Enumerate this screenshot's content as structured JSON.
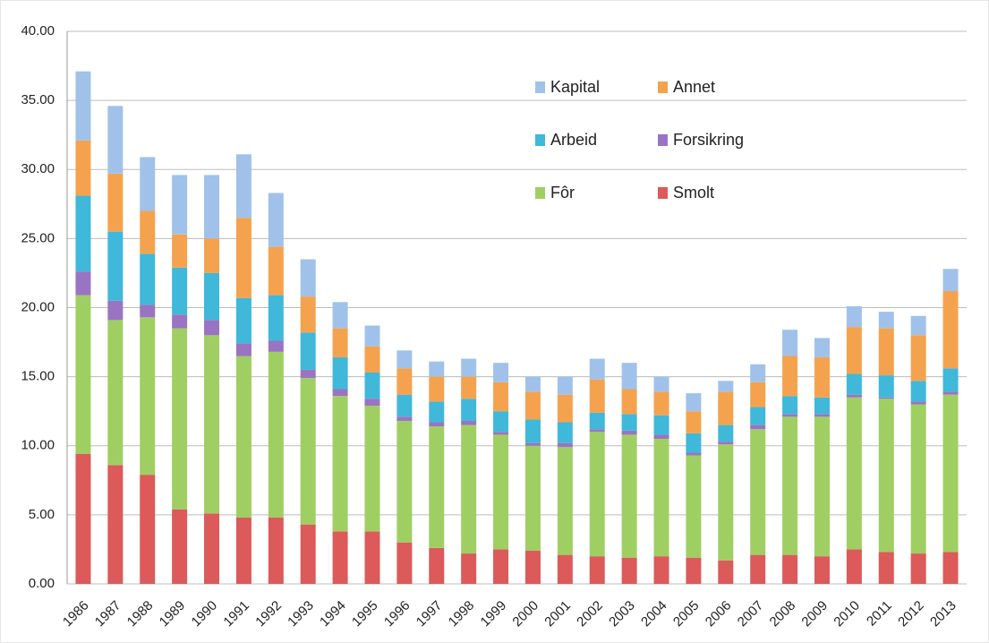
{
  "chart_data": {
    "type": "stacked_bar",
    "categories": [
      "1986",
      "1987",
      "1988",
      "1989",
      "1990",
      "1991",
      "1992",
      "1993",
      "1994",
      "1995",
      "1996",
      "1997",
      "1998",
      "1999",
      "2000",
      "2001",
      "2002",
      "2003",
      "2004",
      "2005",
      "2006",
      "2007",
      "2008",
      "2009",
      "2010",
      "2011",
      "2012",
      "2013"
    ],
    "series": [
      {
        "name": "Smolt",
        "color": "#dc5a5a",
        "values": [
          9.4,
          8.6,
          7.9,
          5.4,
          5.1,
          4.8,
          4.8,
          4.3,
          3.8,
          3.8,
          3.0,
          2.6,
          2.2,
          2.5,
          2.4,
          2.1,
          2.0,
          1.9,
          2.0,
          1.9,
          1.7,
          2.1,
          2.1,
          2.0,
          2.5,
          2.3,
          2.2,
          2.3
        ]
      },
      {
        "name": "Fôr",
        "color": "#9fcf62",
        "values": [
          11.5,
          10.5,
          11.4,
          13.1,
          12.9,
          11.7,
          12.0,
          10.6,
          9.8,
          9.1,
          8.8,
          8.8,
          9.3,
          8.3,
          7.6,
          7.8,
          9.0,
          8.9,
          8.5,
          7.4,
          8.4,
          9.1,
          10.0,
          10.1,
          11.0,
          11.1,
          10.8,
          11.4
        ]
      },
      {
        "name": "Forsikring",
        "color": "#9a74c2",
        "values": [
          1.7,
          1.4,
          0.9,
          1.0,
          1.1,
          0.9,
          0.8,
          0.6,
          0.5,
          0.5,
          0.3,
          0.3,
          0.3,
          0.2,
          0.2,
          0.3,
          0.2,
          0.3,
          0.3,
          0.2,
          0.2,
          0.3,
          0.2,
          0.2,
          0.2,
          0.1,
          0.2,
          0.2
        ]
      },
      {
        "name": "Arbeid",
        "color": "#3fb8da",
        "values": [
          5.5,
          5.0,
          3.7,
          3.4,
          3.4,
          3.3,
          3.3,
          2.7,
          2.3,
          1.9,
          1.6,
          1.5,
          1.6,
          1.5,
          1.7,
          1.5,
          1.2,
          1.2,
          1.4,
          1.4,
          1.2,
          1.3,
          1.3,
          1.2,
          1.5,
          1.6,
          1.5,
          1.7
        ]
      },
      {
        "name": "Annet",
        "color": "#f5a24e",
        "values": [
          4.0,
          4.2,
          3.1,
          2.4,
          2.5,
          5.8,
          3.5,
          2.6,
          2.1,
          1.9,
          1.9,
          1.8,
          1.6,
          2.1,
          2.0,
          2.0,
          2.4,
          1.8,
          1.7,
          1.6,
          2.4,
          1.8,
          2.9,
          2.9,
          3.4,
          3.4,
          3.3,
          5.6
        ]
      },
      {
        "name": "Kapital",
        "color": "#a0c2ea",
        "values": [
          5.0,
          4.9,
          3.9,
          4.3,
          4.6,
          4.6,
          3.9,
          2.7,
          1.9,
          1.5,
          1.3,
          1.1,
          1.3,
          1.4,
          1.1,
          1.3,
          1.5,
          1.9,
          1.1,
          1.3,
          0.8,
          1.3,
          1.9,
          1.4,
          1.5,
          1.2,
          1.4,
          1.6
        ]
      }
    ],
    "ylim": [
      0,
      40
    ],
    "yticks": [
      {
        "value": 0,
        "label": "0.00"
      },
      {
        "value": 5,
        "label": "5.00"
      },
      {
        "value": 10,
        "label": "10.00"
      },
      {
        "value": 15,
        "label": "15.00"
      },
      {
        "value": 20,
        "label": "20.00"
      },
      {
        "value": 25,
        "label": "25.00"
      },
      {
        "value": 30,
        "label": "30.00"
      },
      {
        "value": 35,
        "label": "35.00"
      },
      {
        "value": 40,
        "label": "40.00"
      }
    ],
    "grid": true
  }
}
